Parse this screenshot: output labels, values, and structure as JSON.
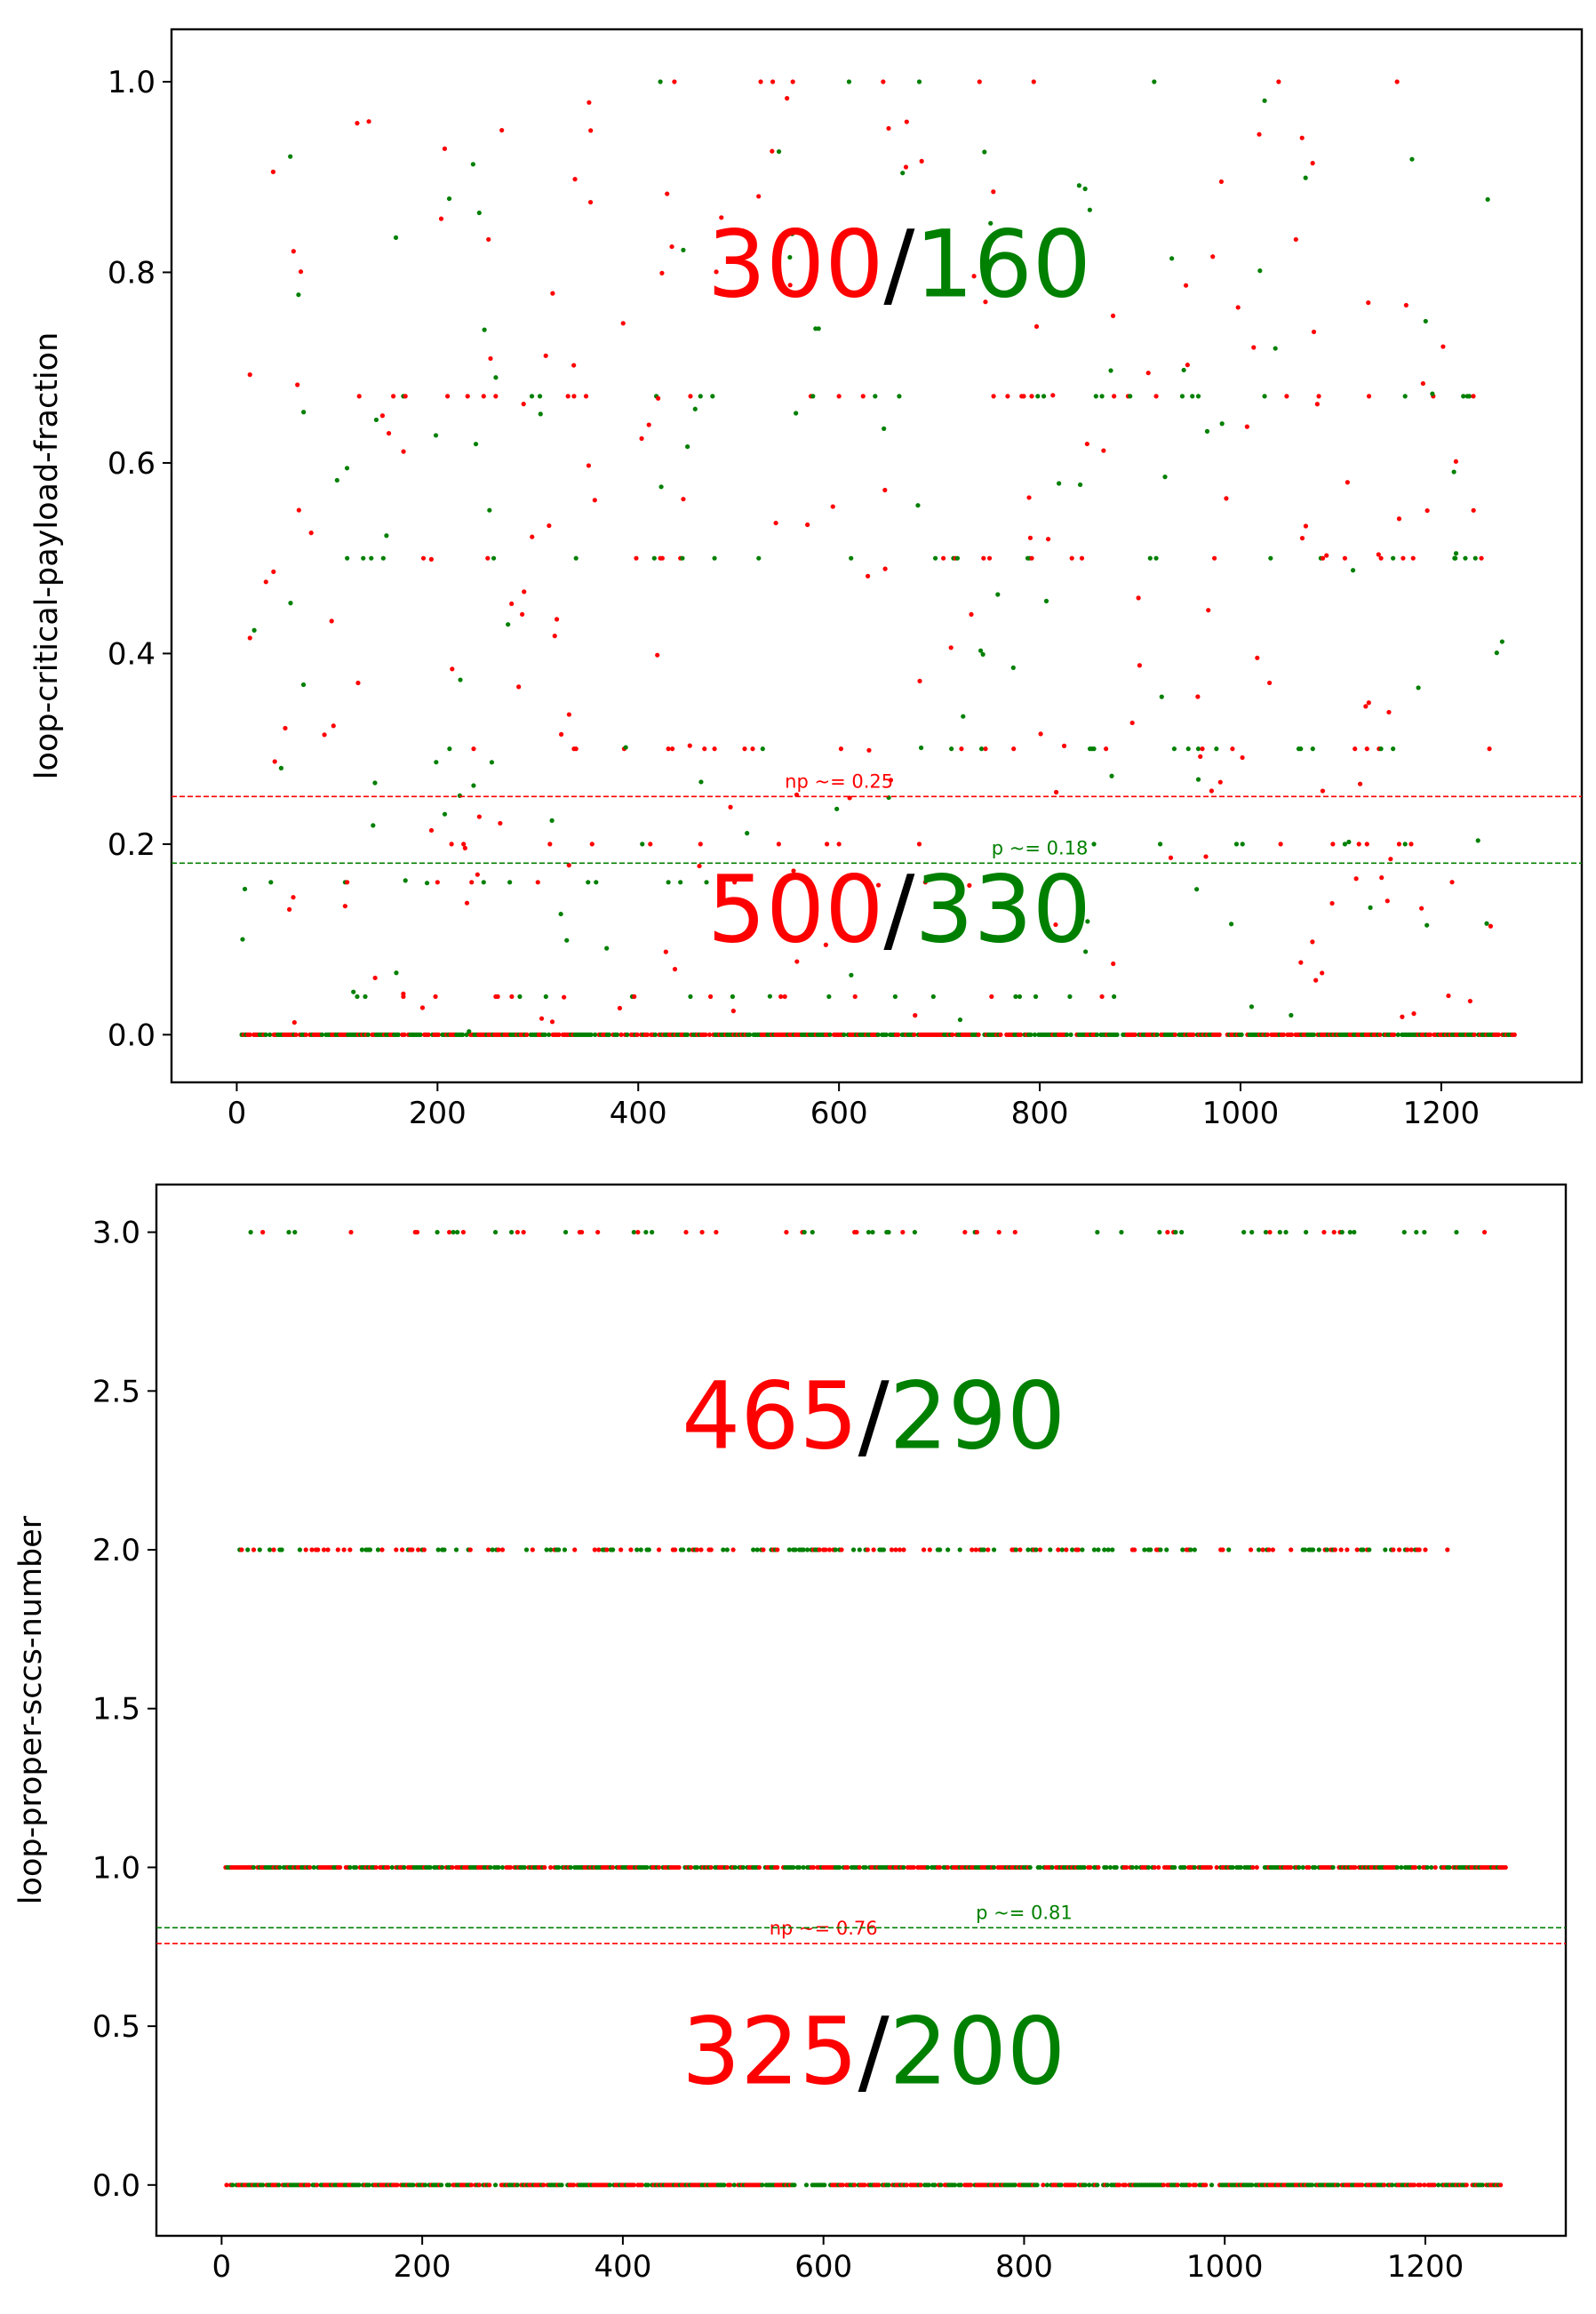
{
  "chart_data": [
    {
      "type": "scatter",
      "ylabel": "loop-critical-payload-fraction",
      "xlim": [
        -65,
        1340
      ],
      "ylim": [
        -0.05,
        1.055
      ],
      "xticks": [
        0,
        200,
        400,
        600,
        800,
        1000,
        1200
      ],
      "yticks": [
        0.0,
        0.2,
        0.4,
        0.6,
        0.8,
        1.0
      ],
      "xtick_labels": [
        "0",
        "200",
        "400",
        "600",
        "800",
        "1000",
        "1200"
      ],
      "ytick_labels": [
        "0.0",
        "0.2",
        "0.4",
        "0.6",
        "0.8",
        "1.0"
      ],
      "colors": {
        "np": "#ff0000",
        "p": "#008000",
        "separator": "#000000"
      },
      "thresholds": [
        {
          "label": "np ~= 0.25",
          "value": 0.25,
          "color": "#ff0000",
          "label_x": 600
        },
        {
          "label": "p ~= 0.18",
          "value": 0.18,
          "color": "#008000",
          "label_x": 800
        }
      ],
      "counts": [
        {
          "np": "300",
          "sep": "/",
          "p": "160",
          "x": 660,
          "y": 0.775
        },
        {
          "np": "500",
          "sep": "/",
          "p": "330",
          "x": 660,
          "y": 0.098
        }
      ],
      "levels": [
        {
          "y": 0.0,
          "xmin": 5,
          "xmax": 1275,
          "density": 0.9
        },
        {
          "y": 0.04,
          "xmin": 100,
          "xmax": 900,
          "density": 0.06
        },
        {
          "y": 0.16,
          "xmin": 30,
          "xmax": 700,
          "density": 0.04
        },
        {
          "y": 0.2,
          "xmin": 200,
          "xmax": 1250,
          "density": 0.05
        },
        {
          "y": 0.3,
          "xmin": 150,
          "xmax": 1270,
          "density": 0.05
        },
        {
          "y": 0.5,
          "xmin": 100,
          "xmax": 1270,
          "density": 0.06
        },
        {
          "y": 0.67,
          "xmin": 20,
          "xmax": 1270,
          "density": 0.07
        },
        {
          "y": 1.0,
          "xmin": 300,
          "xmax": 1270,
          "density": 0.04
        }
      ],
      "scatter_points": 300,
      "seed": 1
    },
    {
      "type": "scatter",
      "ylabel": "loop-proper-sccs-number",
      "xlim": [
        -65,
        1340
      ],
      "ylim": [
        -0.16,
        3.15
      ],
      "xticks": [
        0,
        200,
        400,
        600,
        800,
        1000,
        1200
      ],
      "yticks": [
        0.0,
        0.5,
        1.0,
        1.5,
        2.0,
        2.5,
        3.0
      ],
      "xtick_labels": [
        "0",
        "200",
        "400",
        "600",
        "800",
        "1000",
        "1200"
      ],
      "ytick_labels": [
        "0.0",
        "0.5",
        "1.0",
        "1.5",
        "2.0",
        "2.5",
        "3.0"
      ],
      "colors": {
        "np": "#ff0000",
        "p": "#008000",
        "separator": "#000000"
      },
      "thresholds": [
        {
          "label": "np ~= 0.76",
          "value": 0.76,
          "color": "#ff0000",
          "label_x": 600
        },
        {
          "label": "p ~= 0.81",
          "value": 0.81,
          "color": "#008000",
          "label_x": 800
        }
      ],
      "counts": [
        {
          "np": "465",
          "sep": "/",
          "p": "290",
          "x": 650,
          "y": 2.32
        },
        {
          "np": "325",
          "sep": "/",
          "p": "200",
          "x": 650,
          "y": 0.32
        }
      ],
      "levels": [
        {
          "y": 0.0,
          "xmin": 5,
          "xmax": 1275,
          "density": 0.85
        },
        {
          "y": 1.0,
          "xmin": 0,
          "xmax": 1280,
          "density": 0.85
        },
        {
          "y": 2.0,
          "xmin": 10,
          "xmax": 1225,
          "density": 0.35
        },
        {
          "y": 3.0,
          "xmin": 25,
          "xmax": 1265,
          "density": 0.12
        }
      ],
      "scatter_points": 0,
      "seed": 7
    }
  ]
}
